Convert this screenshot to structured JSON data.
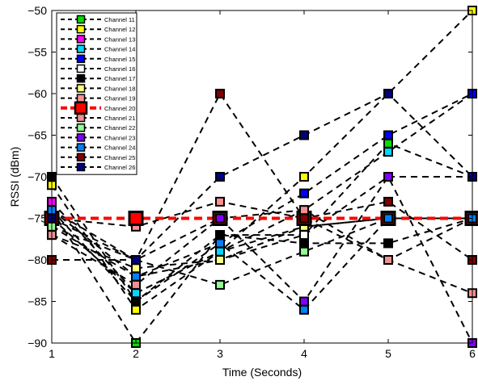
{
  "chart_data": {
    "type": "line",
    "xlabel": "Time (Seconds)",
    "ylabel": "RSSI (dBm)",
    "xlim": [
      1,
      6
    ],
    "ylim": [
      -90,
      -50
    ],
    "x": [
      1,
      2,
      3,
      4,
      5,
      6
    ],
    "xticks": [
      "1",
      "2",
      "3",
      "4",
      "5",
      "6"
    ],
    "yticks": [
      "−50",
      "−55",
      "−60",
      "−65",
      "−70",
      "−75",
      "−80",
      "−85",
      "−90"
    ],
    "ytick_values": [
      -50,
      -55,
      -60,
      -65,
      -70,
      -75,
      -80,
      -85,
      -90
    ],
    "grid": false,
    "legend_position": "top-left",
    "series": [
      {
        "name": "Channel 11",
        "color": "#00e000",
        "values": [
          -74,
          -90,
          -77,
          -77,
          -66,
          -70
        ]
      },
      {
        "name": "Channel 12",
        "color": "#ffff00",
        "values": [
          -71,
          -86,
          -79,
          -70,
          -60,
          -50
        ]
      },
      {
        "name": "Channel 13",
        "color": "#ff00ff",
        "values": [
          -73,
          -84,
          -79,
          -76,
          -75,
          -75
        ]
      },
      {
        "name": "Channel 14",
        "color": "#00d8ff",
        "values": [
          -75,
          -84,
          -79,
          -74,
          -67,
          -60
        ]
      },
      {
        "name": "Channel 15",
        "color": "#0000ff",
        "values": [
          -74,
          -85,
          -78,
          -72,
          -65,
          -60
        ]
      },
      {
        "name": "Channel 16",
        "color": "#ffffff",
        "values": [
          -76,
          -82,
          -80,
          -77,
          -70,
          -70
        ]
      },
      {
        "name": "Channel 17",
        "color": "#000000",
        "values": [
          -70,
          -85,
          -77,
          -78,
          -78,
          -75
        ]
      },
      {
        "name": "Channel 18",
        "color": "#ffff80",
        "values": [
          -77,
          -81,
          -80,
          -76,
          -75,
          -75
        ]
      },
      {
        "name": "Channel 19",
        "color": "#ff9090",
        "values": [
          -75,
          -76,
          -73,
          -75,
          -80,
          -84
        ]
      },
      {
        "name": "Channel 20",
        "color": "#ff0000",
        "values": [
          -75,
          -75,
          -75,
          -75,
          -75,
          -75
        ]
      },
      {
        "name": "Channel 21",
        "color": "#f09090",
        "values": [
          -77,
          -83,
          -75,
          -74,
          -80,
          -75
        ]
      },
      {
        "name": "Channel 22",
        "color": "#90ff90",
        "values": [
          -76,
          -80,
          -83,
          -79,
          -75,
          -75
        ]
      },
      {
        "name": "Channel 23",
        "color": "#8000ff",
        "values": [
          -74,
          -80,
          -75,
          -85,
          -70,
          -90
        ]
      },
      {
        "name": "Channel 24",
        "color": "#0080ff",
        "values": [
          -74,
          -82,
          -78,
          -86,
          -75,
          -75
        ]
      },
      {
        "name": "Channel 25",
        "color": "#800000",
        "values": [
          -80,
          -80,
          -60,
          -75,
          -73,
          -80
        ]
      },
      {
        "name": "Channel 26",
        "color": "#000080",
        "values": [
          -75,
          -80,
          -70,
          -65,
          -60,
          -70
        ]
      }
    ]
  }
}
